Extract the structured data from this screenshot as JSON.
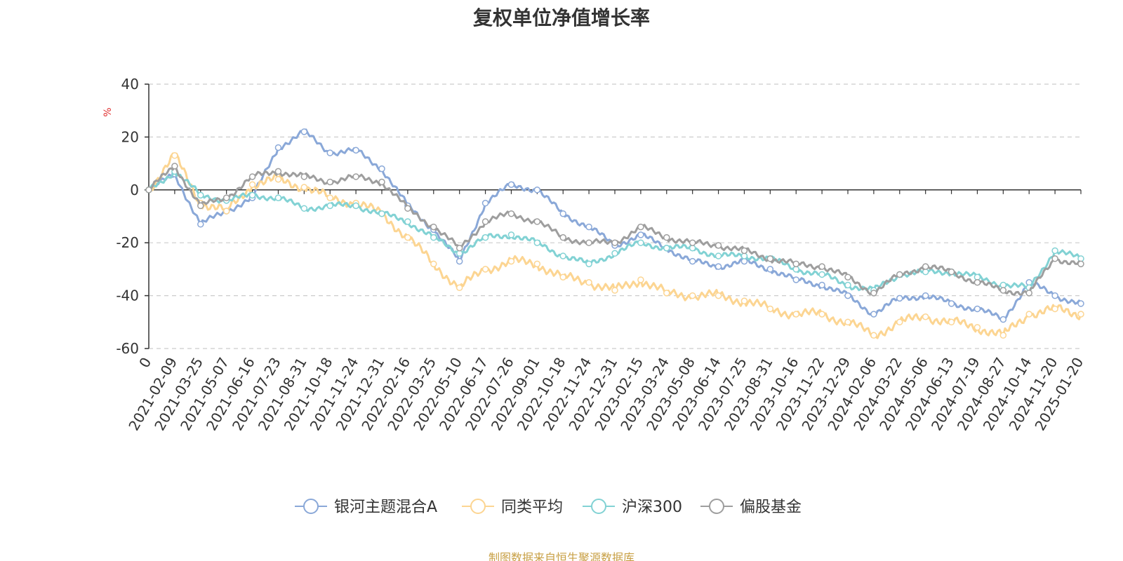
{
  "chart_data": {
    "type": "line",
    "title": "复权单位净值增长率",
    "ylabel": "%",
    "xlabel": "",
    "ylim": [
      -60,
      40
    ],
    "yticks": [
      40,
      20,
      0,
      -20,
      -40,
      -60
    ],
    "grid": true,
    "legend_position": "bottom",
    "source": "制图数据来自恒生聚源数据库",
    "x": [
      "0",
      "2021-02-09",
      "2021-03-25",
      "2021-05-07",
      "2021-06-16",
      "2021-07-23",
      "2021-08-31",
      "2021-10-18",
      "2021-11-24",
      "2021-12-31",
      "2022-02-16",
      "2022-03-25",
      "2022-05-10",
      "2022-06-17",
      "2022-07-26",
      "2022-09-01",
      "2022-10-18",
      "2022-11-24",
      "2022-12-31",
      "2023-02-15",
      "2023-03-24",
      "2023-05-08",
      "2023-06-14",
      "2023-07-25",
      "2023-08-31",
      "2023-10-16",
      "2023-11-22",
      "2023-12-29",
      "2024-02-06",
      "2024-03-22",
      "2024-05-06",
      "2024-06-13",
      "2024-07-19",
      "2024-08-27",
      "2024-10-14",
      "2024-11-20",
      "2025-01-20"
    ],
    "series": [
      {
        "name": "银河主题混合A",
        "color": "#8aa8d8",
        "values": [
          0,
          6,
          -13,
          -8,
          -3,
          16,
          22,
          14,
          15,
          8,
          -6,
          -15,
          -27,
          -5,
          2,
          0,
          -9,
          -14,
          -21,
          -17,
          -22,
          -27,
          -29,
          -27,
          -30,
          -34,
          -36,
          -40,
          -47,
          -41,
          -40,
          -43,
          -45,
          -49,
          -35,
          -40,
          -43
        ]
      },
      {
        "name": "同类平均",
        "color": "#fcd592",
        "values": [
          0,
          13,
          -5,
          -8,
          2,
          4,
          1,
          -3,
          -5,
          -9,
          -18,
          -28,
          -37,
          -30,
          -27,
          -28,
          -33,
          -35,
          -38,
          -34,
          -39,
          -40,
          -40,
          -42,
          -45,
          -47,
          -47,
          -50,
          -55,
          -50,
          -48,
          -50,
          -52,
          -55,
          -47,
          -45,
          -47
        ]
      },
      {
        "name": "沪深300",
        "color": "#82d2d4",
        "values": [
          0,
          7,
          -2,
          -4,
          -2,
          -3,
          -7,
          -6,
          -6,
          -9,
          -12,
          -18,
          -24,
          -18,
          -17,
          -20,
          -25,
          -28,
          -24,
          -20,
          -22,
          -22,
          -25,
          -25,
          -26,
          -30,
          -32,
          -36,
          -38,
          -32,
          -31,
          -31,
          -33,
          -36,
          -37,
          -23,
          -26
        ]
      },
      {
        "name": "偏股基金",
        "color": "#9e9e9e",
        "values": [
          0,
          9,
          -6,
          -3,
          5,
          7,
          5,
          3,
          5,
          3,
          -7,
          -14,
          -22,
          -12,
          -9,
          -12,
          -18,
          -20,
          -20,
          -14,
          -18,
          -20,
          -21,
          -23,
          -26,
          -28,
          -29,
          -33,
          -39,
          -32,
          -29,
          -31,
          -35,
          -38,
          -39,
          -26,
          -28
        ]
      }
    ]
  }
}
